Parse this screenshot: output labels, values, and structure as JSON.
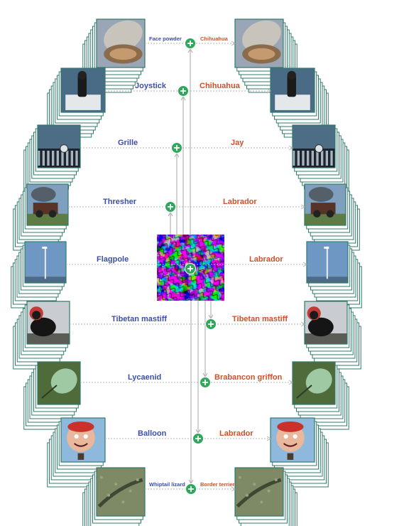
{
  "colors": {
    "original_label": "#3b4fa6",
    "adversarial_label": "#d0502a",
    "frame_stroke": "#2f7a6a",
    "plus_circle": "#2fa85c",
    "connector": "#b4b4b4"
  },
  "center": {
    "name": "universal-perturbation",
    "icon": "plus-circle-icon"
  },
  "rows": [
    {
      "id": "face-powder",
      "original": "Face powder",
      "perturbed": "Chihuahua",
      "thumb": "compact-mirror"
    },
    {
      "id": "joystick",
      "original": "Joystick",
      "perturbed": "Chihuahua",
      "thumb": "joystick"
    },
    {
      "id": "grille",
      "original": "Grille",
      "perturbed": "Jay",
      "thumb": "car-grille"
    },
    {
      "id": "thresher",
      "original": "Thresher",
      "perturbed": "Labrador",
      "thumb": "steam-thresher"
    },
    {
      "id": "flagpole",
      "original": "Flagpole",
      "perturbed": "Labrador",
      "thumb": "flagpole"
    },
    {
      "id": "tibetan-mastiff",
      "original": "Tibetan mastiff",
      "perturbed": "Tibetan mastiff",
      "thumb": "dog"
    },
    {
      "id": "lycaenid",
      "original": "Lycaenid",
      "perturbed": "Brabancon griffon",
      "thumb": "butterfly"
    },
    {
      "id": "balloon",
      "original": "Balloon",
      "perturbed": "Labrador",
      "thumb": "face-balloon"
    },
    {
      "id": "whiptail-lizard",
      "original": "Whiptail lizard",
      "perturbed": "Border terrier",
      "thumb": "lizard"
    }
  ]
}
